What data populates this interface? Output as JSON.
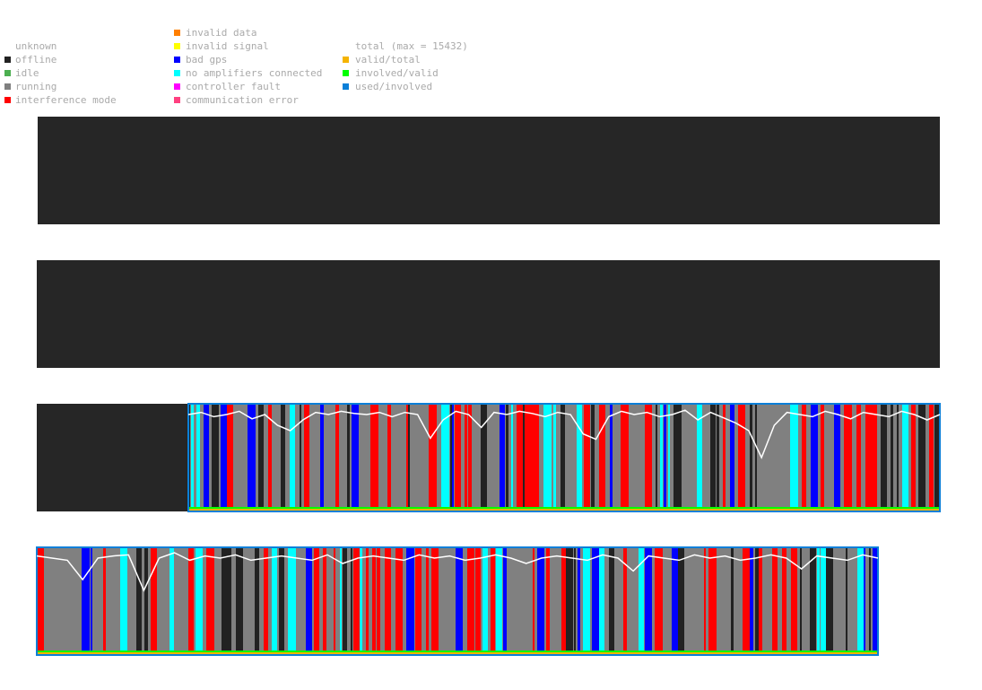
{
  "legend": {
    "columns": [
      [
        {
          "label": "unknown",
          "color": "#ffffff"
        },
        {
          "label": "offline",
          "color": "#222222"
        },
        {
          "label": "idle",
          "color": "#4caf50"
        },
        {
          "label": "running",
          "color": "#808080"
        },
        {
          "label": "interference mode",
          "color": "#ff0000"
        }
      ],
      [
        {
          "label": "invalid data",
          "color": "#ff7f00"
        },
        {
          "label": "invalid signal",
          "color": "#ffff00"
        },
        {
          "label": "bad gps",
          "color": "#0000ff"
        },
        {
          "label": "no amplifiers connected",
          "color": "#00ffff"
        },
        {
          "label": "controller fault",
          "color": "#ff00ff"
        },
        {
          "label": "communication error",
          "color": "#ff4080"
        }
      ],
      [
        {
          "label": "total (max = 15432)",
          "color": "#ffffff"
        },
        {
          "label": "valid/total",
          "color": "#f5b400"
        },
        {
          "label": "involved/valid",
          "color": "#00ff00"
        },
        {
          "label": "used/involved",
          "color": "#0a7fd8"
        }
      ]
    ]
  },
  "panels": [
    {
      "line": []
    },
    {
      "line": []
    },
    {
      "line": [
        0.9,
        0.92,
        0.88,
        0.9,
        0.93,
        0.86,
        0.9,
        0.8,
        0.75,
        0.85,
        0.92,
        0.9,
        0.93,
        0.91,
        0.9,
        0.92,
        0.88,
        0.92,
        0.9,
        0.68,
        0.85,
        0.93,
        0.9,
        0.78,
        0.92,
        0.9,
        0.93,
        0.91,
        0.88,
        0.92,
        0.9,
        0.72,
        0.67,
        0.88,
        0.93,
        0.9,
        0.92,
        0.88,
        0.9,
        0.94,
        0.85,
        0.92,
        0.87,
        0.82,
        0.75,
        0.5,
        0.8,
        0.92,
        0.9,
        0.88,
        0.93,
        0.9,
        0.86,
        0.92,
        0.9,
        0.88,
        0.93,
        0.9,
        0.85,
        0.9
      ]
    },
    {
      "line": [
        0.92,
        0.9,
        0.88,
        0.7,
        0.9,
        0.92,
        0.93,
        0.6,
        0.9,
        0.95,
        0.88,
        0.92,
        0.9,
        0.93,
        0.88,
        0.9,
        0.92,
        0.9,
        0.88,
        0.93,
        0.85,
        0.9,
        0.92,
        0.9,
        0.88,
        0.93,
        0.9,
        0.92,
        0.88,
        0.9,
        0.93,
        0.9,
        0.85,
        0.9,
        0.92,
        0.9,
        0.88,
        0.93,
        0.9,
        0.78,
        0.92,
        0.9,
        0.88,
        0.93,
        0.9,
        0.92,
        0.88,
        0.9,
        0.93,
        0.9,
        0.8,
        0.92,
        0.9,
        0.88,
        0.93,
        0.9
      ]
    }
  ]
}
